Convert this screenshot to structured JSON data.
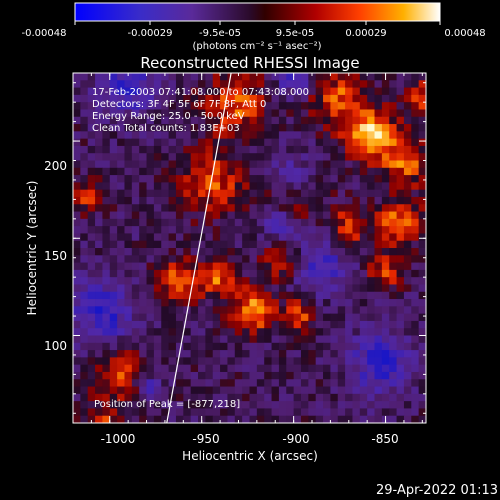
{
  "colorbar": {
    "tick_labels": [
      "-0.00048",
      "-0.00029",
      "-9.5e-05",
      "9.5e-05",
      "0.00029",
      "0.00048"
    ],
    "units_label": "(photons cm⁻² s⁻¹ asec⁻²)"
  },
  "image": {
    "title": "Reconstructed RHESSI Image",
    "info_lines": [
      "17-Feb-2003 07:41:08.000 to 07:43:08.000",
      "Detectors: 3F 4F 5F 6F 7F 8F, Att 0",
      "Energy Range: 25.0 - 50.0 keV",
      "Clean     Total counts: 1.83E+03"
    ],
    "peak_label": "Position of Peak = [-877,218]",
    "xlabel": "Heliocentric X (arcsec)",
    "ylabel": "Heliocentric Y (arcsec)",
    "x_ticks": [
      "-1000",
      "-950",
      "-900",
      "-850"
    ],
    "y_ticks": [
      "100",
      "150",
      "200"
    ],
    "x_range": [
      -1020,
      -828
    ],
    "y_range": [
      55,
      235
    ],
    "limb_line": {
      "x1": -969,
      "y1": 55,
      "x2": -934,
      "y2": 235
    }
  },
  "footer": {
    "timestamp": "29-Apr-2022 01:13"
  }
}
